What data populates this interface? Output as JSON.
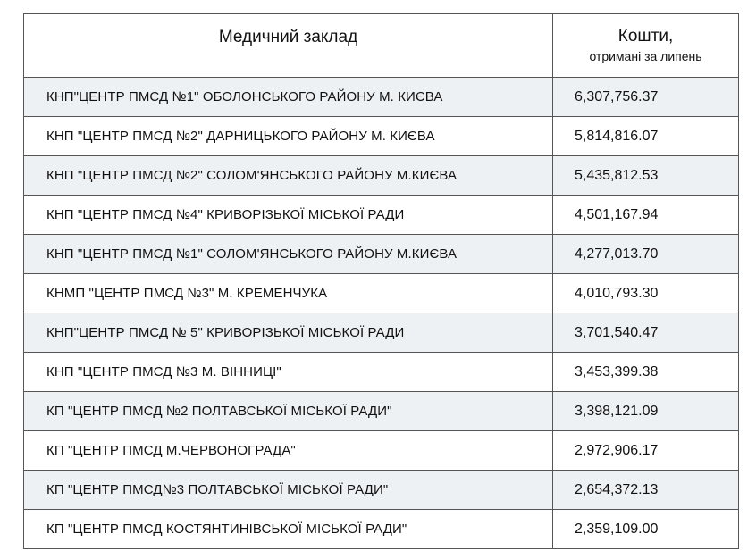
{
  "table": {
    "header": {
      "name": "Медичний заклад",
      "amount_main": "Кошти,",
      "amount_sub": "отримані за липень"
    },
    "rows": [
      {
        "name": "КНП\"ЦЕНТР ПМСД №1\" ОБОЛОНСЬКОГО РАЙОНУ М. КИЄВА",
        "amount": "6,307,756.37"
      },
      {
        "name": "КНП \"ЦЕНТР ПМСД №2\" ДАРНИЦЬКОГО РАЙОНУ М. КИЄВА",
        "amount": "5,814,816.07"
      },
      {
        "name": "КНП \"ЦЕНТР ПМСД №2\" СОЛОМ'ЯНСЬКОГО РАЙОНУ М.КИЄВА",
        "amount": "5,435,812.53"
      },
      {
        "name": "КНП \"ЦЕНТР ПМСД №4\" КРИВОРІЗЬКОЇ МІСЬКОЇ РАДИ",
        "amount": "4,501,167.94"
      },
      {
        "name": "КНП \"ЦЕНТР ПМСД №1\" СОЛОМ'ЯНСЬКОГО РАЙОНУ М.КИЄВА",
        "amount": "4,277,013.70"
      },
      {
        "name": "КНМП \"ЦЕНТР ПМСД №3\" М. КРЕМЕНЧУКА",
        "amount": "4,010,793.30"
      },
      {
        "name": "КНП\"ЦЕНТР ПМСД № 5\" КРИВОРІЗЬКОЇ МІСЬКОЇ РАДИ",
        "amount": "3,701,540.47"
      },
      {
        "name": "КНП \"ЦЕНТР ПМСД №3 М. ВІННИЦІ\"",
        "amount": "3,453,399.38"
      },
      {
        "name": "КП \"ЦЕНТР ПМСД №2 ПОЛТАВСЬКОЇ МІСЬКОЇ РАДИ\"",
        "amount": "3,398,121.09"
      },
      {
        "name": "КП \"ЦЕНТР ПМСД М.ЧЕРВОНОГРАДА\"",
        "amount": "2,972,906.17"
      },
      {
        "name": "КП \"ЦЕНТР ПМСД№3 ПОЛТАВСЬКОЇ МІСЬКОЇ РАДИ\"",
        "amount": "2,654,372.13"
      },
      {
        "name": "КП \"ЦЕНТР ПМСД КОСТЯНТИНІВСЬКОЇ МІСЬКОЇ РАДИ\"",
        "amount": "2,359,109.00"
      }
    ]
  }
}
